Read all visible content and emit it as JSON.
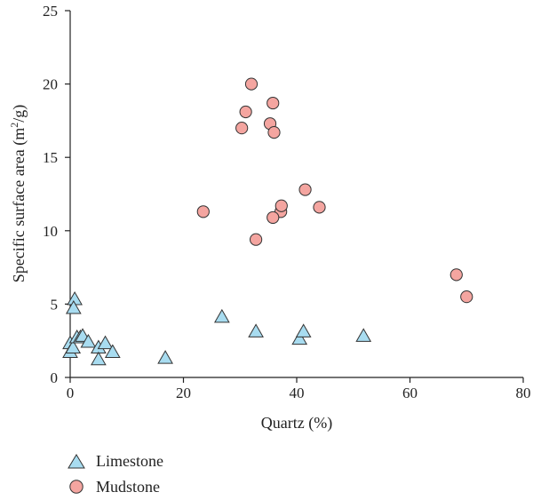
{
  "chart_data": {
    "type": "scatter",
    "title": "",
    "xlabel": "Quartz (%)",
    "ylabel_main": "Specific surface area (m",
    "ylabel_sup": "2",
    "ylabel_tail": "/g)",
    "xlim": [
      0,
      80
    ],
    "ylim": [
      0,
      25
    ],
    "xticks": [
      "0",
      "20",
      "40",
      "60",
      "80"
    ],
    "yticks": [
      "0",
      "5",
      "10",
      "15",
      "20",
      "25"
    ],
    "grid": false,
    "legend_position": "bottom-left",
    "series": [
      {
        "name": "Limestone",
        "marker": "triangle",
        "color": "#a8dcf0",
        "edge_color": "#333333",
        "points": [
          [
            0.8,
            5.3
          ],
          [
            0.6,
            4.7
          ],
          [
            0.0,
            2.3
          ],
          [
            0.0,
            1.7
          ],
          [
            0.5,
            2.0
          ],
          [
            1.2,
            2.7
          ],
          [
            1.8,
            2.7
          ],
          [
            2.2,
            2.8
          ],
          [
            3.2,
            2.4
          ],
          [
            5.0,
            2.0
          ],
          [
            6.2,
            2.3
          ],
          [
            7.5,
            1.7
          ],
          [
            5.0,
            1.2
          ],
          [
            16.8,
            1.3
          ],
          [
            26.8,
            4.1
          ],
          [
            32.8,
            3.1
          ],
          [
            40.5,
            2.6
          ],
          [
            41.2,
            3.1
          ],
          [
            51.8,
            2.8
          ]
        ]
      },
      {
        "name": "Mudstone",
        "marker": "circle",
        "color": "#f4a5a0",
        "edge_color": "#333333",
        "points": [
          [
            32.0,
            20.0
          ],
          [
            31.0,
            18.1
          ],
          [
            35.8,
            18.7
          ],
          [
            30.3,
            17.0
          ],
          [
            35.3,
            17.3
          ],
          [
            36.0,
            16.7
          ],
          [
            23.5,
            11.3
          ],
          [
            37.2,
            11.3
          ],
          [
            37.3,
            11.7
          ],
          [
            35.8,
            10.9
          ],
          [
            41.5,
            12.8
          ],
          [
            44.0,
            11.6
          ],
          [
            32.8,
            9.4
          ],
          [
            68.2,
            7.0
          ],
          [
            70.0,
            5.5
          ]
        ]
      }
    ]
  }
}
